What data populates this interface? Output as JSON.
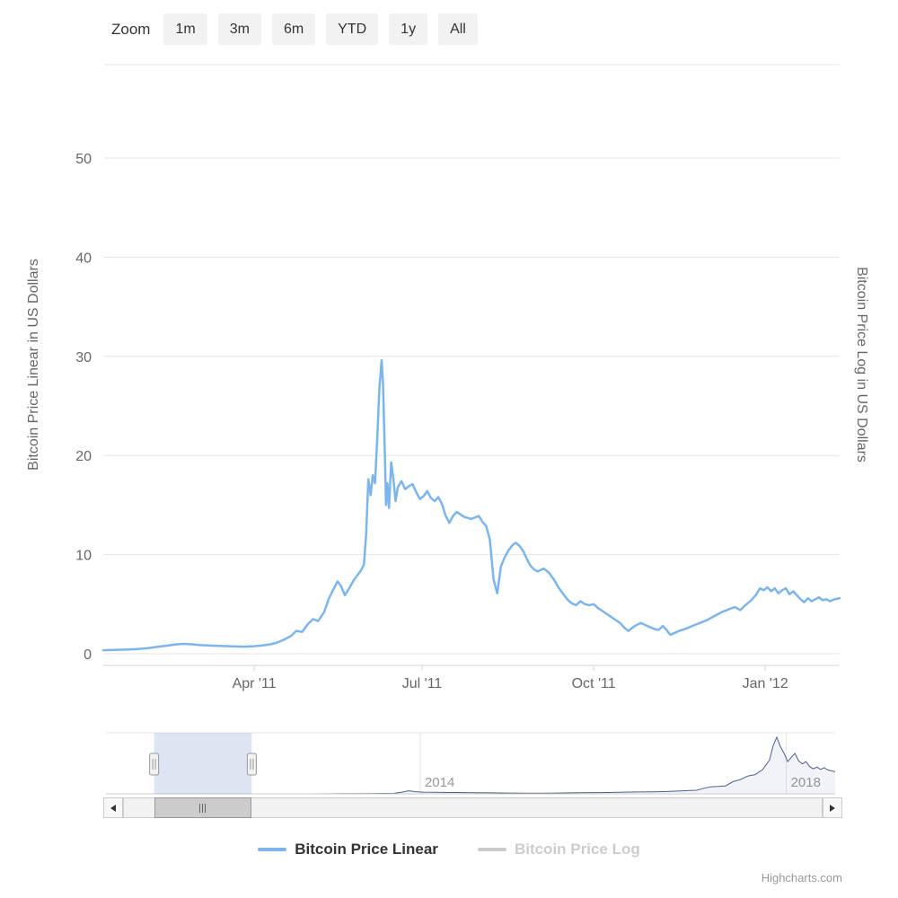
{
  "toolbar": {
    "zoom_label": "Zoom",
    "buttons": [
      {
        "label": "1m"
      },
      {
        "label": "3m"
      },
      {
        "label": "6m"
      },
      {
        "label": "YTD"
      },
      {
        "label": "1y"
      },
      {
        "label": "All"
      }
    ]
  },
  "chart_data": {
    "type": "line",
    "title": "",
    "y_axis_left": {
      "title": "Bitcoin Price Linear in US Dollars",
      "ticks": [
        0,
        10,
        20,
        30,
        40,
        50
      ],
      "range": [
        0,
        59
      ],
      "grid": true
    },
    "y_axis_right": {
      "title": "Bitcoin Price Log in US Dollars"
    },
    "x_axis": {
      "ticks": [
        {
          "label": "Apr '11",
          "pos": 0.205
        },
        {
          "label": "Jul '11",
          "pos": 0.433
        },
        {
          "label": "Oct '11",
          "pos": 0.666
        },
        {
          "label": "Jan '12",
          "pos": 0.899
        }
      ]
    },
    "series": [
      {
        "name": "Bitcoin Price Linear",
        "color": "#7cb5ec",
        "visible": true,
        "points": [
          [
            0.0,
            0.35
          ],
          [
            0.015,
            0.38
          ],
          [
            0.03,
            0.42
          ],
          [
            0.045,
            0.46
          ],
          [
            0.06,
            0.55
          ],
          [
            0.075,
            0.72
          ],
          [
            0.09,
            0.85
          ],
          [
            0.1,
            0.95
          ],
          [
            0.11,
            1.0
          ],
          [
            0.12,
            0.95
          ],
          [
            0.13,
            0.88
          ],
          [
            0.145,
            0.82
          ],
          [
            0.16,
            0.78
          ],
          [
            0.175,
            0.74
          ],
          [
            0.19,
            0.72
          ],
          [
            0.205,
            0.76
          ],
          [
            0.215,
            0.82
          ],
          [
            0.225,
            0.92
          ],
          [
            0.235,
            1.1
          ],
          [
            0.245,
            1.4
          ],
          [
            0.255,
            1.8
          ],
          [
            0.262,
            2.3
          ],
          [
            0.27,
            2.2
          ],
          [
            0.278,
            3.0
          ],
          [
            0.285,
            3.5
          ],
          [
            0.292,
            3.3
          ],
          [
            0.3,
            4.2
          ],
          [
            0.306,
            5.5
          ],
          [
            0.312,
            6.4
          ],
          [
            0.318,
            7.3
          ],
          [
            0.323,
            6.8
          ],
          [
            0.328,
            5.9
          ],
          [
            0.334,
            6.6
          ],
          [
            0.34,
            7.4
          ],
          [
            0.345,
            7.9
          ],
          [
            0.35,
            8.4
          ],
          [
            0.354,
            9.0
          ],
          [
            0.357,
            12.0
          ],
          [
            0.36,
            17.6
          ],
          [
            0.363,
            16.0
          ],
          [
            0.366,
            18.0
          ],
          [
            0.369,
            17.2
          ],
          [
            0.372,
            21.5
          ],
          [
            0.375,
            26.8
          ],
          [
            0.378,
            29.6
          ],
          [
            0.38,
            27.0
          ],
          [
            0.382,
            21.5
          ],
          [
            0.384,
            15.0
          ],
          [
            0.386,
            17.2
          ],
          [
            0.388,
            14.7
          ],
          [
            0.391,
            19.3
          ],
          [
            0.394,
            17.6
          ],
          [
            0.397,
            15.4
          ],
          [
            0.4,
            16.8
          ],
          [
            0.405,
            17.4
          ],
          [
            0.41,
            16.6
          ],
          [
            0.415,
            16.9
          ],
          [
            0.42,
            17.1
          ],
          [
            0.425,
            16.3
          ],
          [
            0.43,
            15.6
          ],
          [
            0.435,
            15.9
          ],
          [
            0.44,
            16.4
          ],
          [
            0.445,
            15.7
          ],
          [
            0.45,
            15.4
          ],
          [
            0.455,
            15.8
          ],
          [
            0.46,
            15.1
          ],
          [
            0.465,
            13.9
          ],
          [
            0.47,
            13.2
          ],
          [
            0.475,
            13.9
          ],
          [
            0.48,
            14.3
          ],
          [
            0.49,
            13.8
          ],
          [
            0.5,
            13.6
          ],
          [
            0.51,
            13.9
          ],
          [
            0.515,
            13.3
          ],
          [
            0.52,
            12.9
          ],
          [
            0.525,
            11.5
          ],
          [
            0.53,
            7.5
          ],
          [
            0.535,
            6.1
          ],
          [
            0.54,
            8.8
          ],
          [
            0.545,
            9.7
          ],
          [
            0.55,
            10.4
          ],
          [
            0.555,
            10.9
          ],
          [
            0.56,
            11.2
          ],
          [
            0.565,
            10.9
          ],
          [
            0.57,
            10.4
          ],
          [
            0.575,
            9.6
          ],
          [
            0.58,
            8.9
          ],
          [
            0.585,
            8.5
          ],
          [
            0.59,
            8.3
          ],
          [
            0.598,
            8.6
          ],
          [
            0.605,
            8.2
          ],
          [
            0.612,
            7.5
          ],
          [
            0.618,
            6.7
          ],
          [
            0.624,
            6.1
          ],
          [
            0.63,
            5.5
          ],
          [
            0.636,
            5.1
          ],
          [
            0.642,
            4.9
          ],
          [
            0.648,
            5.3
          ],
          [
            0.654,
            5.0
          ],
          [
            0.66,
            4.9
          ],
          [
            0.666,
            5.0
          ],
          [
            0.672,
            4.6
          ],
          [
            0.678,
            4.3
          ],
          [
            0.684,
            4.0
          ],
          [
            0.69,
            3.7
          ],
          [
            0.696,
            3.4
          ],
          [
            0.702,
            3.1
          ],
          [
            0.708,
            2.6
          ],
          [
            0.713,
            2.3
          ],
          [
            0.718,
            2.6
          ],
          [
            0.724,
            2.9
          ],
          [
            0.73,
            3.1
          ],
          [
            0.736,
            2.9
          ],
          [
            0.742,
            2.7
          ],
          [
            0.748,
            2.5
          ],
          [
            0.754,
            2.4
          ],
          [
            0.76,
            2.8
          ],
          [
            0.765,
            2.4
          ],
          [
            0.77,
            1.9
          ],
          [
            0.776,
            2.1
          ],
          [
            0.782,
            2.3
          ],
          [
            0.79,
            2.5
          ],
          [
            0.8,
            2.8
          ],
          [
            0.81,
            3.1
          ],
          [
            0.82,
            3.4
          ],
          [
            0.83,
            3.8
          ],
          [
            0.84,
            4.2
          ],
          [
            0.85,
            4.5
          ],
          [
            0.858,
            4.7
          ],
          [
            0.865,
            4.4
          ],
          [
            0.872,
            4.9
          ],
          [
            0.88,
            5.4
          ],
          [
            0.886,
            5.9
          ],
          [
            0.892,
            6.6
          ],
          [
            0.897,
            6.4
          ],
          [
            0.902,
            6.7
          ],
          [
            0.907,
            6.3
          ],
          [
            0.912,
            6.6
          ],
          [
            0.917,
            6.1
          ],
          [
            0.922,
            6.4
          ],
          [
            0.927,
            6.6
          ],
          [
            0.932,
            6.0
          ],
          [
            0.937,
            6.3
          ],
          [
            0.942,
            5.9
          ],
          [
            0.947,
            5.5
          ],
          [
            0.952,
            5.2
          ],
          [
            0.957,
            5.6
          ],
          [
            0.962,
            5.3
          ],
          [
            0.967,
            5.5
          ],
          [
            0.972,
            5.7
          ],
          [
            0.977,
            5.4
          ],
          [
            0.982,
            5.5
          ],
          [
            0.987,
            5.3
          ],
          [
            0.993,
            5.5
          ],
          [
            1.0,
            5.6
          ]
        ]
      },
      {
        "name": "Bitcoin Price Log",
        "color": "#cccccc",
        "visible": false,
        "points": []
      }
    ],
    "navigator": {
      "range_max": 21000,
      "year_ticks": [
        {
          "label": "2014",
          "pos": 0.431
        },
        {
          "label": "2018",
          "pos": 0.933
        }
      ],
      "selection": {
        "start": 0.066,
        "end": 0.2
      },
      "series": [
        [
          0.0,
          1
        ],
        [
          0.04,
          1
        ],
        [
          0.08,
          2
        ],
        [
          0.12,
          3
        ],
        [
          0.16,
          5
        ],
        [
          0.2,
          8
        ],
        [
          0.24,
          11
        ],
        [
          0.28,
          13
        ],
        [
          0.31,
          30
        ],
        [
          0.34,
          80
        ],
        [
          0.37,
          120
        ],
        [
          0.395,
          180
        ],
        [
          0.405,
          550
        ],
        [
          0.415,
          1050
        ],
        [
          0.425,
          750
        ],
        [
          0.435,
          580
        ],
        [
          0.45,
          520
        ],
        [
          0.47,
          460
        ],
        [
          0.49,
          420
        ],
        [
          0.51,
          380
        ],
        [
          0.53,
          330
        ],
        [
          0.55,
          290
        ],
        [
          0.57,
          260
        ],
        [
          0.59,
          245
        ],
        [
          0.61,
          255
        ],
        [
          0.63,
          300
        ],
        [
          0.65,
          380
        ],
        [
          0.67,
          430
        ],
        [
          0.69,
          470
        ],
        [
          0.71,
          590
        ],
        [
          0.73,
          650
        ],
        [
          0.75,
          710
        ],
        [
          0.77,
          800
        ],
        [
          0.785,
          970
        ],
        [
          0.8,
          1150
        ],
        [
          0.81,
          1250
        ],
        [
          0.82,
          1900
        ],
        [
          0.83,
          2450
        ],
        [
          0.84,
          2550
        ],
        [
          0.85,
          2750
        ],
        [
          0.86,
          4200
        ],
        [
          0.87,
          4900
        ],
        [
          0.88,
          6100
        ],
        [
          0.89,
          6600
        ],
        [
          0.9,
          8200
        ],
        [
          0.905,
          9900
        ],
        [
          0.91,
          11600
        ],
        [
          0.915,
          16600
        ],
        [
          0.92,
          19500
        ],
        [
          0.925,
          16200
        ],
        [
          0.93,
          13900
        ],
        [
          0.935,
          11100
        ],
        [
          0.94,
          12600
        ],
        [
          0.945,
          13900
        ],
        [
          0.95,
          11300
        ],
        [
          0.955,
          10300
        ],
        [
          0.96,
          11100
        ],
        [
          0.965,
          9400
        ],
        [
          0.97,
          8600
        ],
        [
          0.975,
          9200
        ],
        [
          0.98,
          8400
        ],
        [
          0.985,
          9000
        ],
        [
          0.99,
          8200
        ],
        [
          1.0,
          7600
        ]
      ]
    }
  },
  "legend": {
    "items": [
      {
        "label": "Bitcoin Price Linear",
        "color": "#7cb5ec",
        "text_color": "#333333"
      },
      {
        "label": "Bitcoin Price Log",
        "color": "#cccccc",
        "text_color": "#cccccc"
      }
    ]
  },
  "credits": "Highcharts.com",
  "colors": {
    "line": "#7cb5ec",
    "grid": "#e6e6e6",
    "axis_line": "#ccd6eb",
    "label": "#666666",
    "nav_line": "#4a618c",
    "nav_fill": "rgba(51,92,173,0.07)",
    "mask": "rgba(102,133,194,0.22)"
  }
}
